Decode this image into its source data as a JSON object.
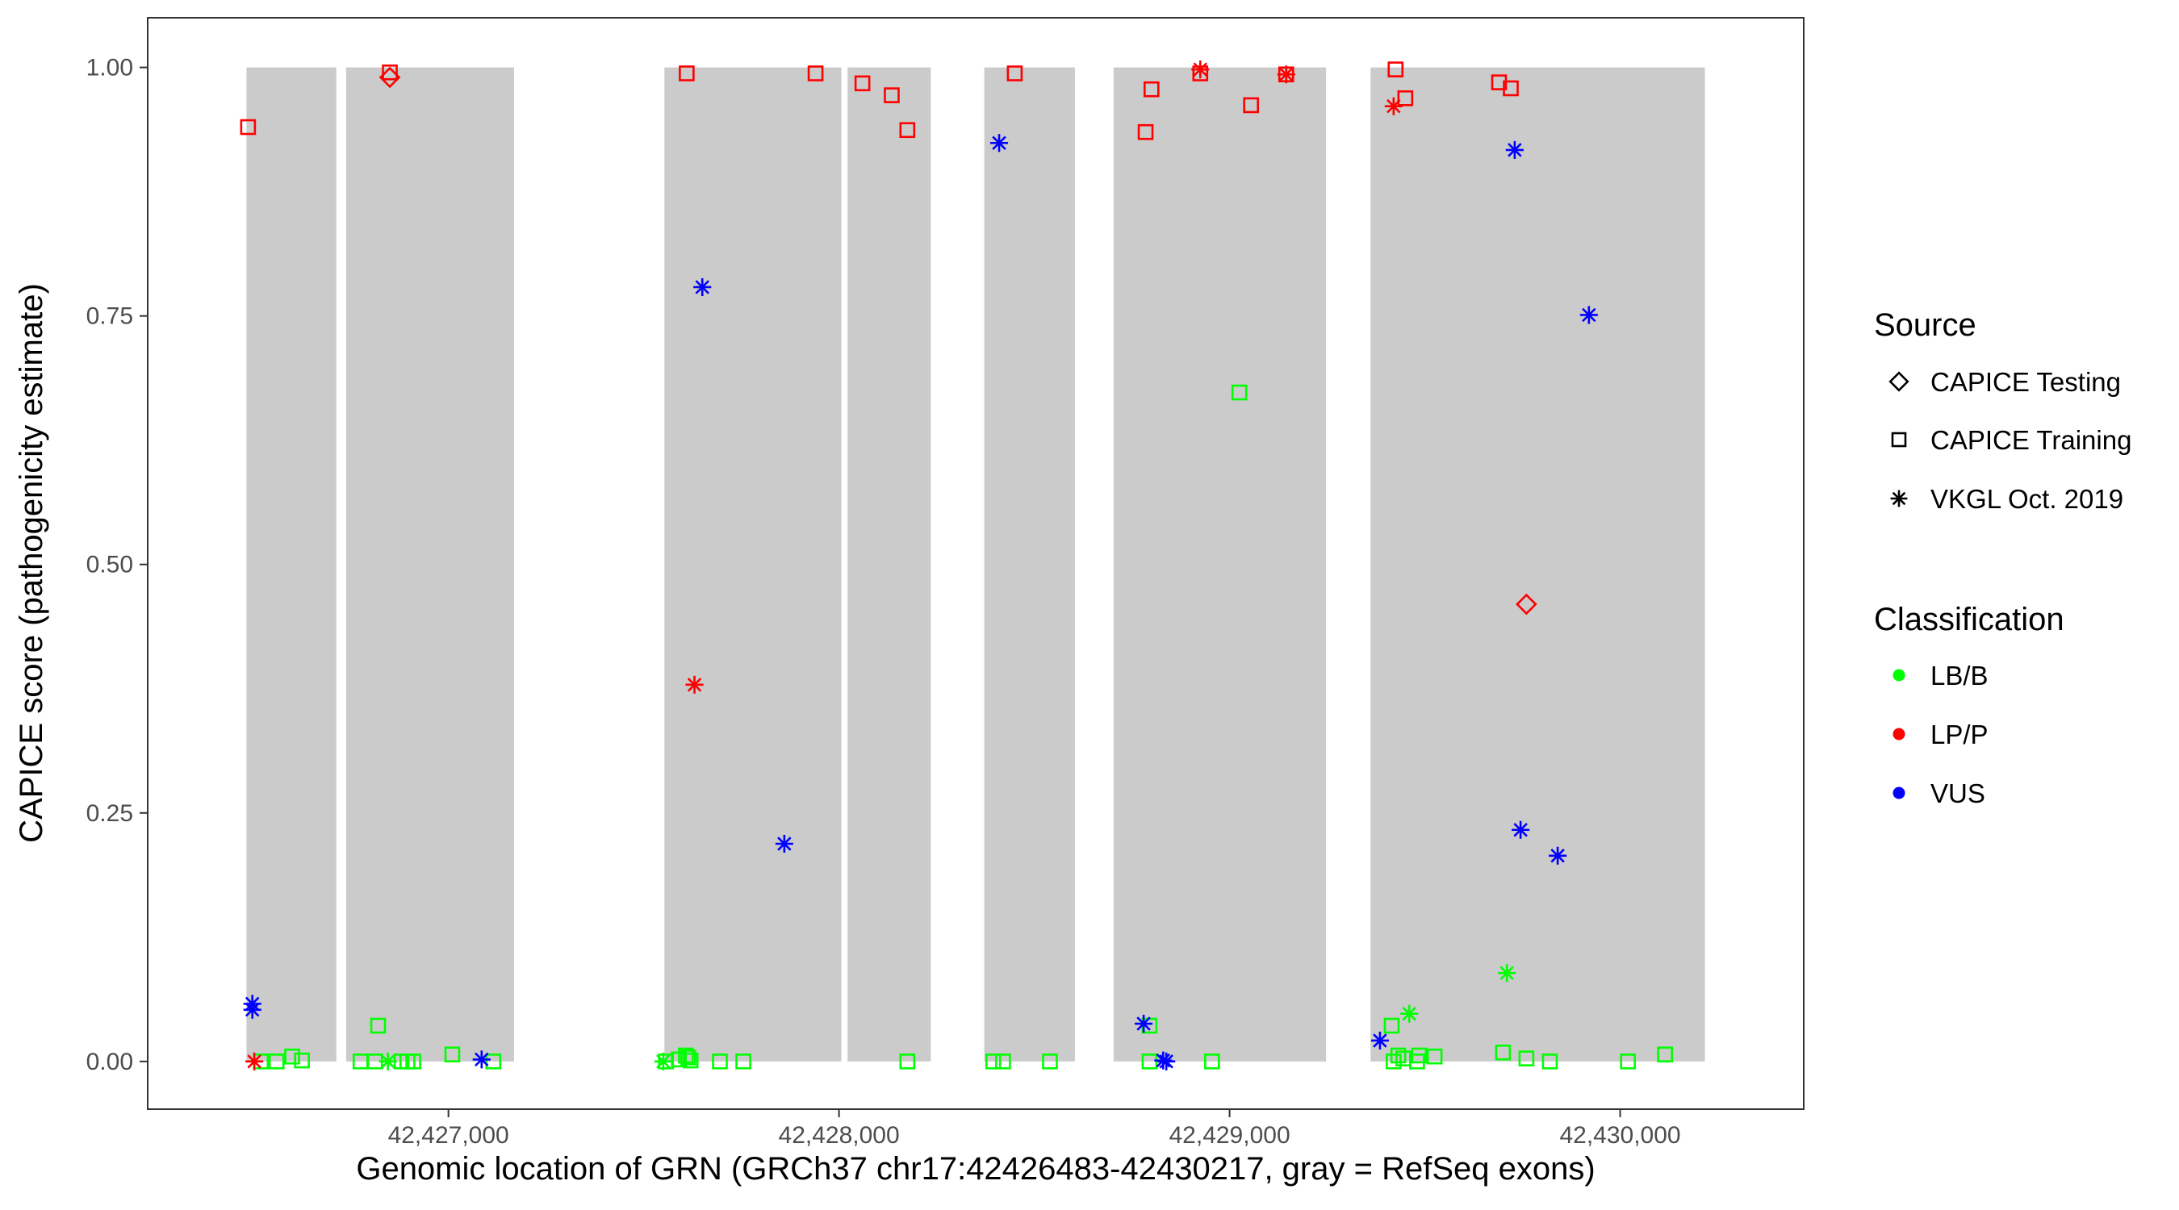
{
  "chart_data": {
    "type": "scatter",
    "title": "",
    "xlabel": "Genomic location of GRN (GRCh37 chr17:42426483-42430217, gray = RefSeq exons)",
    "ylabel": "CAPICE score (pathogenicity estimate)",
    "xlim": [
      42426230,
      42430470
    ],
    "ylim": [
      -0.048,
      1.05
    ],
    "x_ticks": [
      42427000,
      42428000,
      42429000,
      42430000
    ],
    "x_tick_labels": [
      "42,427,000",
      "42,428,000",
      "42,429,000",
      "42,430,000"
    ],
    "y_ticks": [
      0,
      0.25,
      0.5,
      0.75,
      1
    ],
    "y_tick_labels": [
      "0.00",
      "0.25",
      "0.50",
      "0.75",
      "1.00"
    ],
    "grid": false,
    "exons": [
      [
        42426483,
        42426713
      ],
      [
        42426738,
        42427168
      ],
      [
        42427553,
        42428006
      ],
      [
        42428022,
        42428235
      ],
      [
        42428372,
        42428604
      ],
      [
        42428703,
        42429247
      ],
      [
        42429361,
        42430217
      ]
    ],
    "exon_color": "#cbcbcb",
    "colors": {
      "LB/B": "#00ff00",
      "LP/P": "#ff0000",
      "VUS": "#0000ff"
    },
    "legends": [
      {
        "title": "Source",
        "items": [
          {
            "label": "CAPICE Testing",
            "shape": "diamond"
          },
          {
            "label": "CAPICE Training",
            "shape": "square"
          },
          {
            "label": "VKGL Oct. 2019",
            "shape": "star"
          }
        ]
      },
      {
        "title": "Classification",
        "items": [
          {
            "label": "LB/B",
            "shape": "dot",
            "color": "#00ff00"
          },
          {
            "label": "LP/P",
            "shape": "dot",
            "color": "#ff0000"
          },
          {
            "label": "VUS",
            "shape": "dot",
            "color": "#0000ff"
          }
        ]
      }
    ],
    "legend_position": "right",
    "series": [
      {
        "source": "CAPICE Testing",
        "shape": "diamond",
        "points": [
          {
            "x": 42426850,
            "y": 0.99,
            "cls": "LP/P"
          },
          {
            "x": 42429760,
            "y": 0.46,
            "cls": "LP/P"
          }
        ]
      },
      {
        "source": "CAPICE Training",
        "shape": "square",
        "points": [
          {
            "x": 42426487,
            "y": 0.94,
            "cls": "LP/P"
          },
          {
            "x": 42426850,
            "y": 0.995,
            "cls": "LP/P"
          },
          {
            "x": 42427610,
            "y": 0.994,
            "cls": "LP/P"
          },
          {
            "x": 42427940,
            "y": 0.994,
            "cls": "LP/P"
          },
          {
            "x": 42428060,
            "y": 0.984,
            "cls": "LP/P"
          },
          {
            "x": 42428135,
            "y": 0.972,
            "cls": "LP/P"
          },
          {
            "x": 42428175,
            "y": 0.937,
            "cls": "LP/P"
          },
          {
            "x": 42428450,
            "y": 0.994,
            "cls": "LP/P"
          },
          {
            "x": 42428785,
            "y": 0.935,
            "cls": "LP/P"
          },
          {
            "x": 42428800,
            "y": 0.978,
            "cls": "LP/P"
          },
          {
            "x": 42428925,
            "y": 0.994,
            "cls": "LP/P"
          },
          {
            "x": 42429055,
            "y": 0.962,
            "cls": "LP/P"
          },
          {
            "x": 42429145,
            "y": 0.993,
            "cls": "LP/P"
          },
          {
            "x": 42429425,
            "y": 0.998,
            "cls": "LP/P"
          },
          {
            "x": 42429450,
            "y": 0.969,
            "cls": "LP/P"
          },
          {
            "x": 42429690,
            "y": 0.985,
            "cls": "LP/P"
          },
          {
            "x": 42429720,
            "y": 0.979,
            "cls": "LP/P"
          },
          {
            "x": 42426520,
            "y": 0.0,
            "cls": "LB/B"
          },
          {
            "x": 42426560,
            "y": 0.0,
            "cls": "LB/B"
          },
          {
            "x": 42426600,
            "y": 0.005,
            "cls": "LB/B"
          },
          {
            "x": 42426625,
            "y": 0.001,
            "cls": "LB/B"
          },
          {
            "x": 42426775,
            "y": 0.0,
            "cls": "LB/B"
          },
          {
            "x": 42426812,
            "y": 0.0,
            "cls": "LB/B"
          },
          {
            "x": 42426820,
            "y": 0.036,
            "cls": "LB/B"
          },
          {
            "x": 42426880,
            "y": 0.0,
            "cls": "LB/B"
          },
          {
            "x": 42426895,
            "y": 0.0,
            "cls": "LB/B"
          },
          {
            "x": 42426910,
            "y": 0.0,
            "cls": "LB/B"
          },
          {
            "x": 42427010,
            "y": 0.007,
            "cls": "LB/B"
          },
          {
            "x": 42427115,
            "y": 0.0,
            "cls": "LB/B"
          },
          {
            "x": 42427557,
            "y": 0.0,
            "cls": "LB/B"
          },
          {
            "x": 42427590,
            "y": 0.002,
            "cls": "LB/B"
          },
          {
            "x": 42427608,
            "y": 0.006,
            "cls": "LB/B"
          },
          {
            "x": 42427614,
            "y": 0.004,
            "cls": "LB/B"
          },
          {
            "x": 42427620,
            "y": 0.001,
            "cls": "LB/B"
          },
          {
            "x": 42427695,
            "y": 0.0,
            "cls": "LB/B"
          },
          {
            "x": 42427755,
            "y": 0.0,
            "cls": "LB/B"
          },
          {
            "x": 42428175,
            "y": 0.0,
            "cls": "LB/B"
          },
          {
            "x": 42428395,
            "y": 0.0,
            "cls": "LB/B"
          },
          {
            "x": 42428420,
            "y": 0.0,
            "cls": "LB/B"
          },
          {
            "x": 42428540,
            "y": 0.0,
            "cls": "LB/B"
          },
          {
            "x": 42428795,
            "y": 0.036,
            "cls": "LB/B"
          },
          {
            "x": 42428795,
            "y": 0.0,
            "cls": "LB/B"
          },
          {
            "x": 42428955,
            "y": 0.0,
            "cls": "LB/B"
          },
          {
            "x": 42429025,
            "y": 0.673,
            "cls": "LB/B"
          },
          {
            "x": 42429415,
            "y": 0.036,
            "cls": "LB/B"
          },
          {
            "x": 42429420,
            "y": 0.0,
            "cls": "LB/B"
          },
          {
            "x": 42429432,
            "y": 0.006,
            "cls": "LB/B"
          },
          {
            "x": 42429445,
            "y": 0.003,
            "cls": "LB/B"
          },
          {
            "x": 42429480,
            "y": 0.0,
            "cls": "LB/B"
          },
          {
            "x": 42429485,
            "y": 0.006,
            "cls": "LB/B"
          },
          {
            "x": 42429525,
            "y": 0.005,
            "cls": "LB/B"
          },
          {
            "x": 42429700,
            "y": 0.009,
            "cls": "LB/B"
          },
          {
            "x": 42429760,
            "y": 0.003,
            "cls": "LB/B"
          },
          {
            "x": 42429820,
            "y": 0.0,
            "cls": "LB/B"
          },
          {
            "x": 42430020,
            "y": 0.0,
            "cls": "LB/B"
          },
          {
            "x": 42430115,
            "y": 0.007,
            "cls": "LB/B"
          }
        ]
      },
      {
        "source": "VKGL Oct. 2019",
        "shape": "star",
        "points": [
          {
            "x": 42426498,
            "y": 0.058,
            "cls": "VUS"
          },
          {
            "x": 42426498,
            "y": 0.052,
            "cls": "VUS"
          },
          {
            "x": 42426503,
            "y": 0.0,
            "cls": "LP/P"
          },
          {
            "x": 42426845,
            "y": 0.0,
            "cls": "LB/B"
          },
          {
            "x": 42427085,
            "y": 0.002,
            "cls": "VUS"
          },
          {
            "x": 42427550,
            "y": 0.0,
            "cls": "LB/B"
          },
          {
            "x": 42427630,
            "y": 0.379,
            "cls": "LP/P"
          },
          {
            "x": 42427650,
            "y": 0.779,
            "cls": "VUS"
          },
          {
            "x": 42427860,
            "y": 0.219,
            "cls": "VUS"
          },
          {
            "x": 42428410,
            "y": 0.924,
            "cls": "VUS"
          },
          {
            "x": 42428780,
            "y": 0.038,
            "cls": "VUS"
          },
          {
            "x": 42428830,
            "y": 0.001,
            "cls": "VUS"
          },
          {
            "x": 42428838,
            "y": 0.0,
            "cls": "VUS"
          },
          {
            "x": 42428925,
            "y": 0.998,
            "cls": "LP/P"
          },
          {
            "x": 42429145,
            "y": 0.993,
            "cls": "LP/P"
          },
          {
            "x": 42429385,
            "y": 0.021,
            "cls": "VUS"
          },
          {
            "x": 42429420,
            "y": 0.961,
            "cls": "LP/P"
          },
          {
            "x": 42429460,
            "y": 0.048,
            "cls": "LB/B"
          },
          {
            "x": 42429710,
            "y": 0.089,
            "cls": "LB/B"
          },
          {
            "x": 42429730,
            "y": 0.917,
            "cls": "VUS"
          },
          {
            "x": 42429745,
            "y": 0.233,
            "cls": "VUS"
          },
          {
            "x": 42429840,
            "y": 0.207,
            "cls": "VUS"
          },
          {
            "x": 42429920,
            "y": 0.751,
            "cls": "VUS"
          }
        ]
      }
    ]
  }
}
